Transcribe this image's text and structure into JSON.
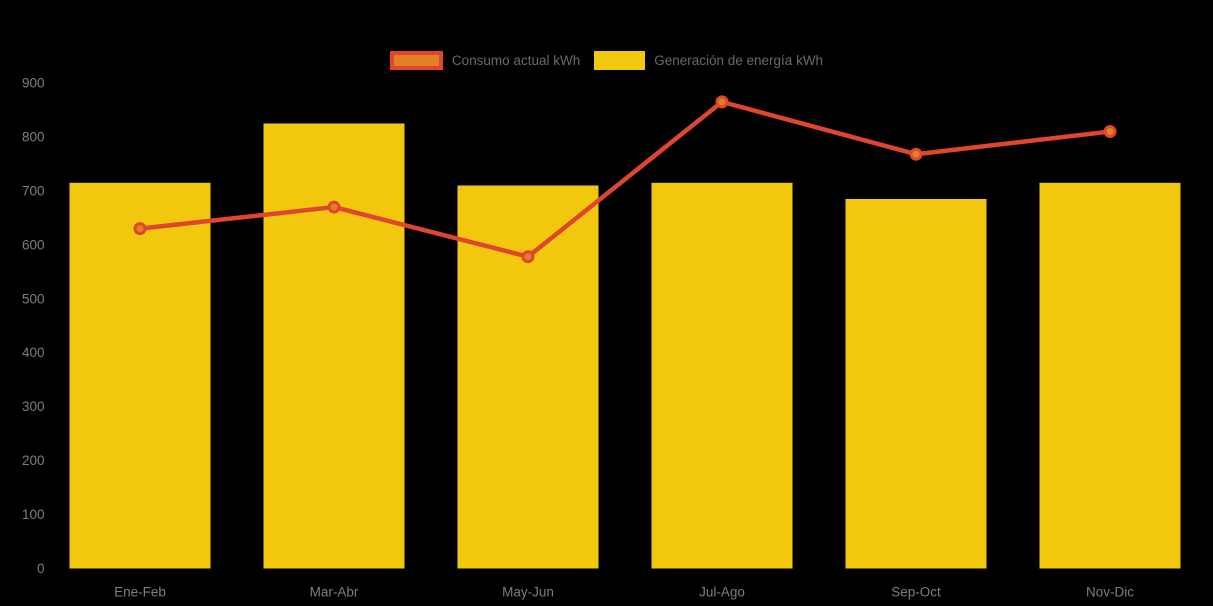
{
  "chart_data": {
    "type": "combo-bar-line",
    "title": "",
    "xlabel": "",
    "ylabel": "",
    "categories": [
      "Ene-Feb",
      "Mar-Abr",
      "May-Jun",
      "Jul-Ago",
      "Sep-Oct",
      "Nov-Dic"
    ],
    "series": [
      {
        "name": "Consumo actual kWh",
        "type": "line",
        "color": "#E0462F",
        "marker_fill": "#E57F25",
        "values": [
          630,
          670,
          578,
          865,
          768,
          810
        ]
      },
      {
        "name": "Generación de energía kWh",
        "type": "bar",
        "color": "#F2C80F",
        "values": [
          715,
          825,
          710,
          715,
          685,
          715
        ]
      }
    ],
    "ylim": [
      0,
      900
    ],
    "yticks": [
      0,
      100,
      200,
      300,
      400,
      500,
      600,
      700,
      800,
      900
    ],
    "grid": false,
    "legend_position": "top-center",
    "background_color": "#000000",
    "axis_label_color": "#7E7E7E",
    "legend_text_color": "#696969"
  }
}
